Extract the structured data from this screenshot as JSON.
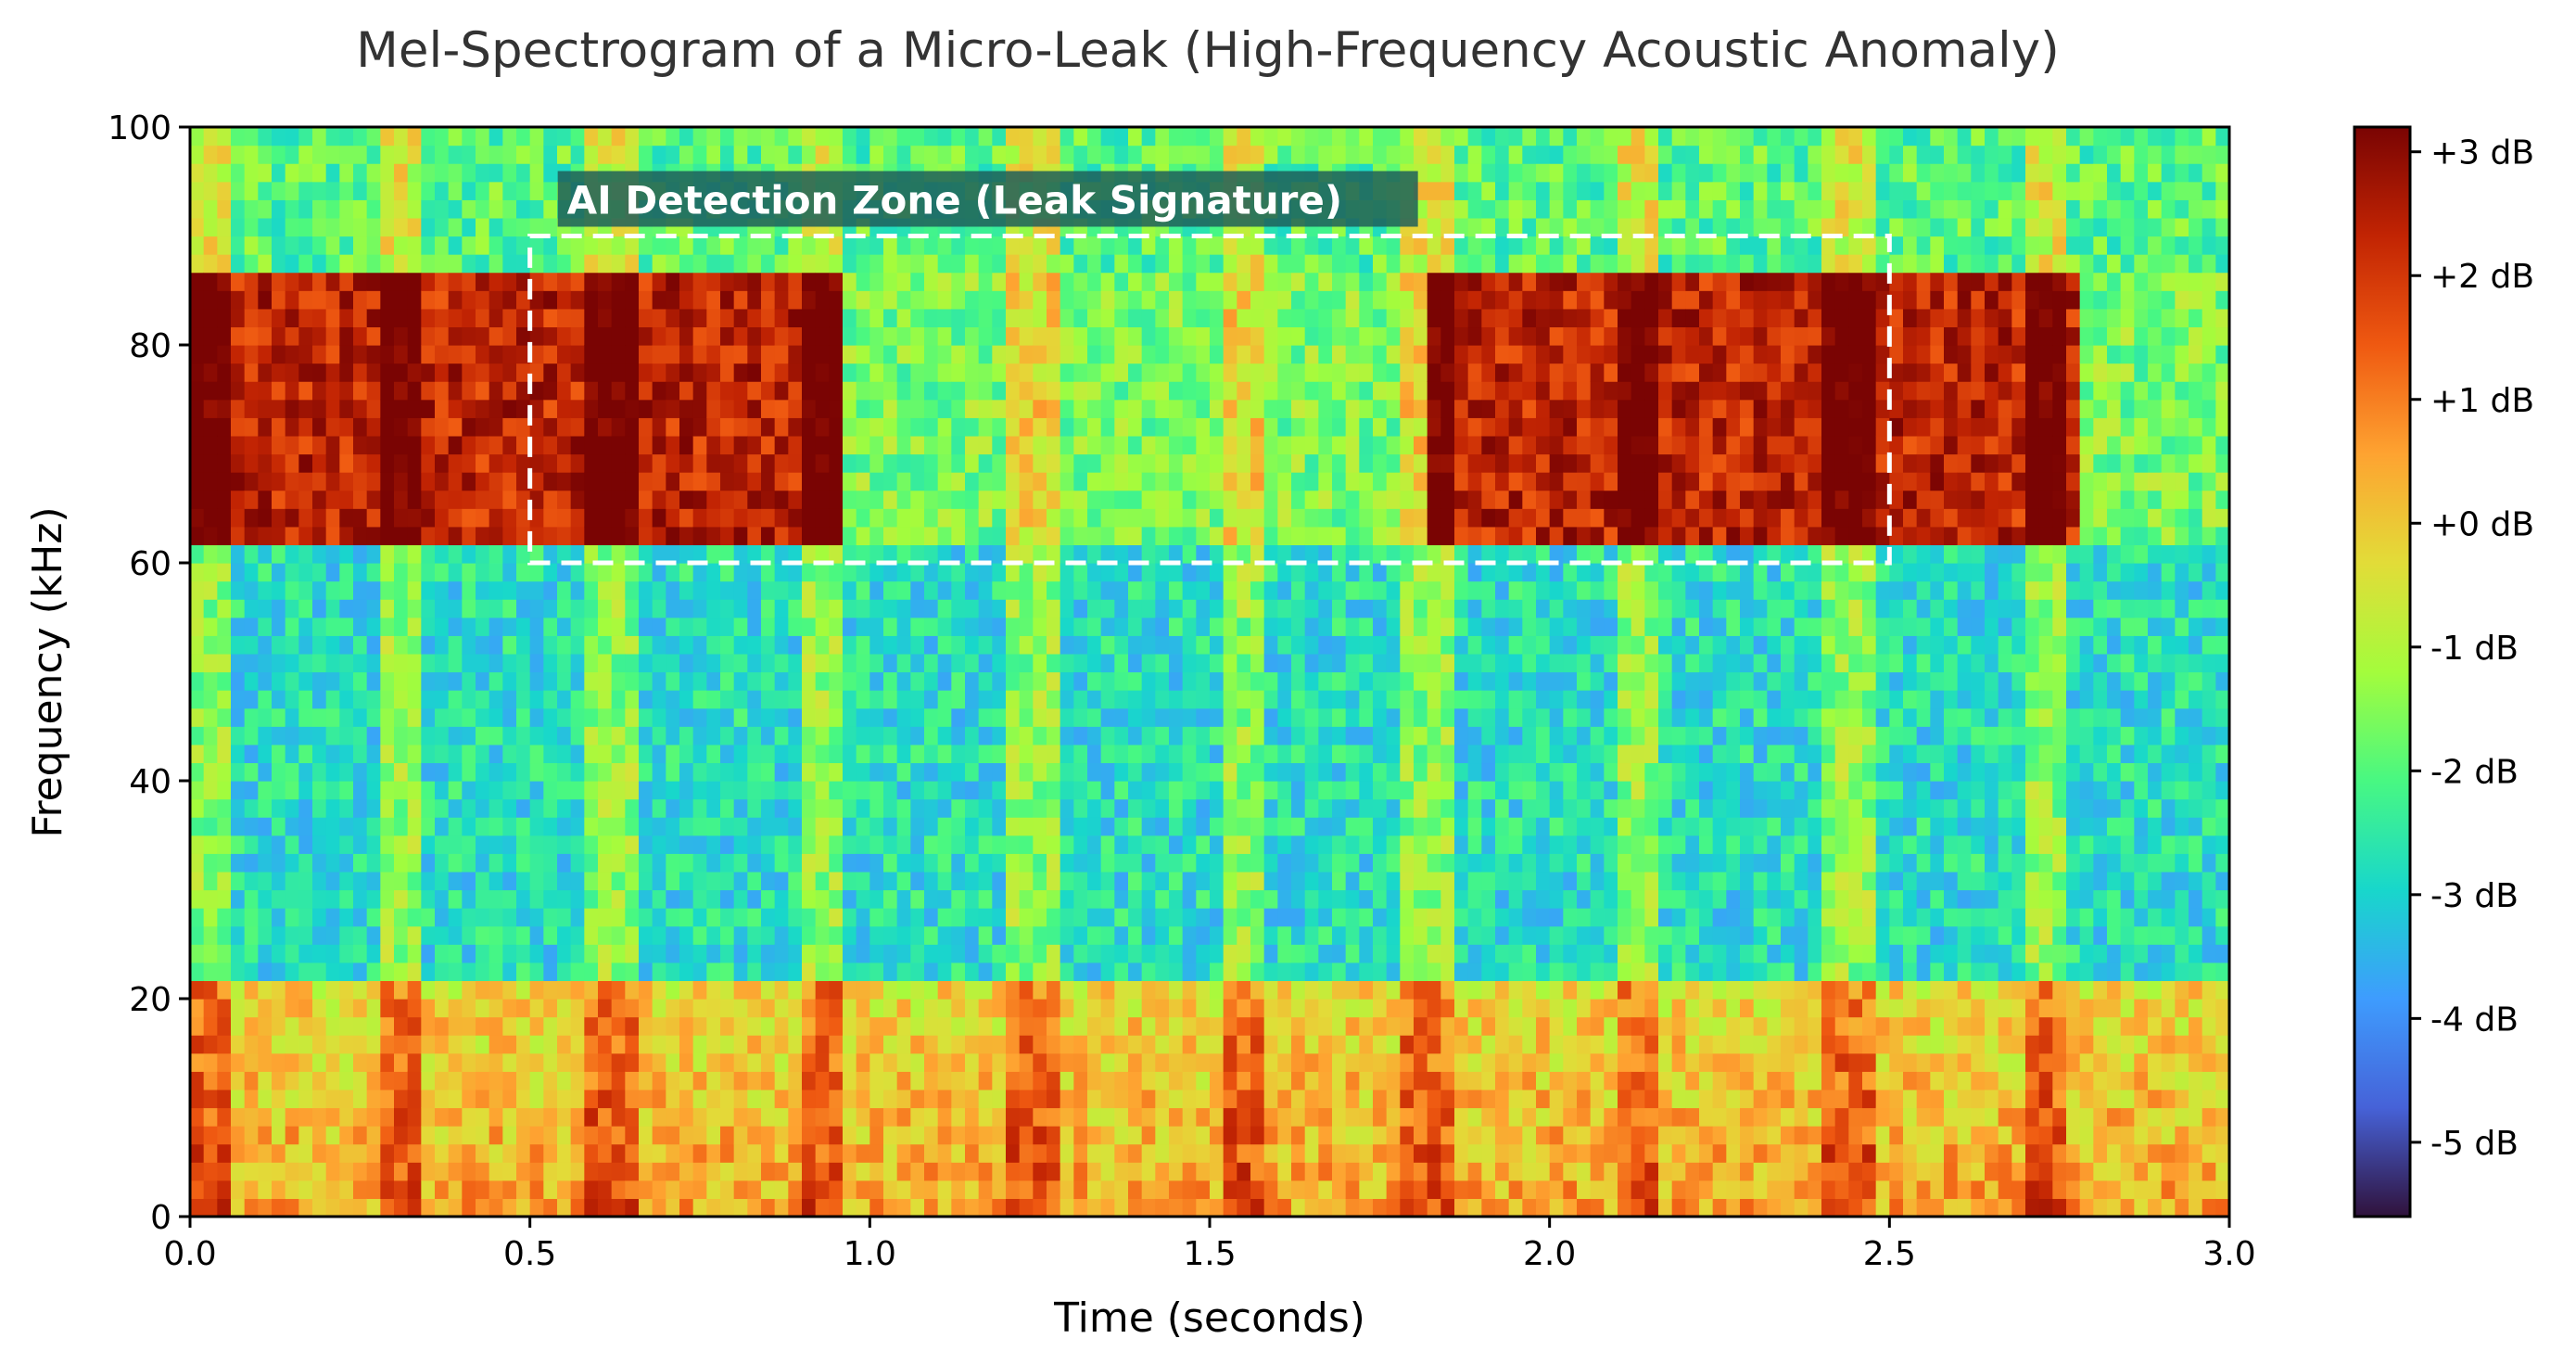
{
  "chart_data": {
    "type": "heatmap",
    "title": "Mel-Spectrogram of a Micro-Leak (High-Frequency Acoustic Anomaly)",
    "xlabel": "Time (seconds)",
    "ylabel": "Frequency (kHz)",
    "xlim": [
      0,
      3.0
    ],
    "ylim": [
      0,
      100
    ],
    "x_ticks": [
      "0.0",
      "0.5",
      "1.0",
      "1.5",
      "2.0",
      "2.5",
      "3.0"
    ],
    "y_ticks": [
      "0",
      "20",
      "40",
      "60",
      "80",
      "100"
    ],
    "colorbar": {
      "range_db": [
        -5.6,
        3.2
      ],
      "ticks": [
        "+3 dB",
        "+2 dB",
        "+1 dB",
        "+0 dB",
        "-1 dB",
        "-2 dB",
        "-3 dB",
        "-4 dB",
        "-5 dB"
      ],
      "tick_values": [
        3,
        2,
        1,
        0,
        -1,
        -2,
        -3,
        -4,
        -5
      ],
      "colormap": "turbo"
    },
    "bands": [
      {
        "freq_range_khz": [
          0,
          22
        ],
        "level_db": 0.0
      },
      {
        "freq_range_khz": [
          22,
          61
        ],
        "level_db": -2.8
      },
      {
        "freq_range_khz": [
          61,
          87
        ],
        "level_db": 1.9
      },
      {
        "freq_range_khz": [
          87,
          100
        ],
        "level_db": -2.0
      }
    ],
    "leak_intervals_s": [
      [
        0.0,
        0.95
      ],
      [
        1.82,
        2.78
      ]
    ],
    "transient_times_s": [
      0.03,
      0.31,
      0.62,
      0.93,
      1.24,
      1.55,
      1.82,
      2.13,
      2.44,
      2.73
    ],
    "annotation": {
      "text": "AI Detection Zone (Leak Signature)",
      "box_time_s": [
        0.5,
        2.5
      ],
      "box_freq_khz": [
        60,
        90
      ],
      "box_color": "#ffffff",
      "label_bg": "#1f5f5a"
    }
  }
}
